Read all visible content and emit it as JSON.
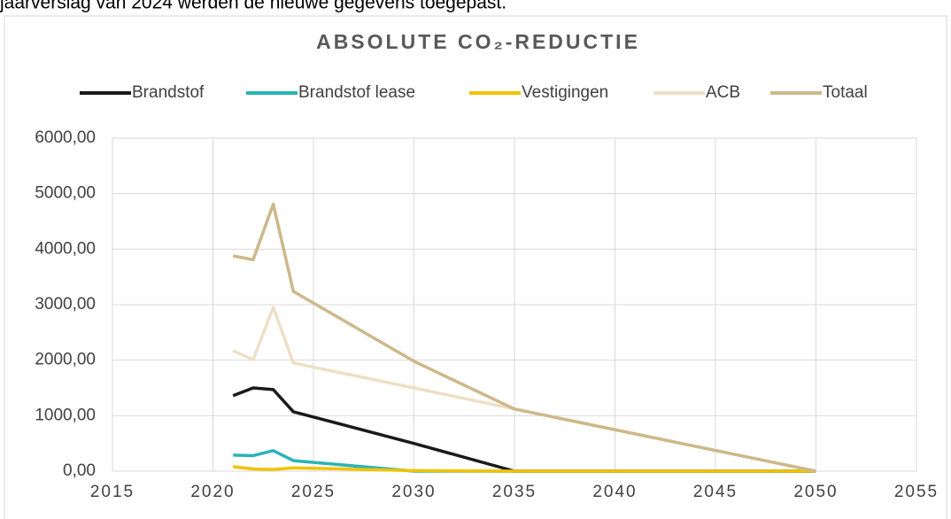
{
  "header_text": "jaarverslag van 2024 werden de nieuwe gegevens toegepast.",
  "chart_data": {
    "type": "line",
    "title": "ABSOLUTE CO₂-REDUCTIE",
    "x": [
      2021,
      2022,
      2023,
      2024,
      2030,
      2035,
      2050
    ],
    "series": [
      {
        "name": "Brandstof",
        "color": "#1a1a1a",
        "values": [
          1360,
          1500,
          1470,
          1070,
          500,
          0,
          0
        ]
      },
      {
        "name": "Brandstof lease",
        "color": "#2ab3b8",
        "values": [
          290,
          280,
          370,
          190,
          0,
          0,
          0
        ]
      },
      {
        "name": "Vestigingen",
        "color": "#f2c200",
        "values": [
          80,
          40,
          30,
          60,
          10,
          0,
          0
        ]
      },
      {
        "name": "ACB",
        "color": "#ede0c6",
        "values": [
          2170,
          2010,
          2950,
          1950,
          1500,
          1120,
          0
        ]
      },
      {
        "name": "Totaal",
        "color": "#cdb88a",
        "values": [
          3880,
          3810,
          4810,
          3240,
          1980,
          1120,
          0
        ]
      }
    ],
    "xlim": [
      2015,
      2055
    ],
    "xticks": [
      2015,
      2020,
      2025,
      2030,
      2035,
      2040,
      2045,
      2050,
      2055
    ],
    "ylim": [
      0,
      6000
    ],
    "yticks": [
      {
        "value": 0,
        "label": "0,00"
      },
      {
        "value": 1000,
        "label": "1000,00"
      },
      {
        "value": 2000,
        "label": "2000,00"
      },
      {
        "value": 3000,
        "label": "3000,00"
      },
      {
        "value": 4000,
        "label": "4000,00"
      },
      {
        "value": 5000,
        "label": "5000,00"
      },
      {
        "value": 6000,
        "label": "6000,00"
      }
    ],
    "grid": true,
    "legend": "top"
  }
}
